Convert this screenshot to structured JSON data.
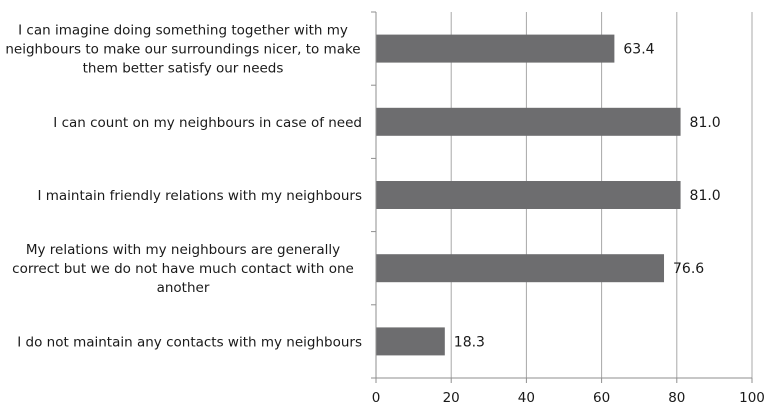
{
  "chart_data": {
    "type": "bar",
    "orientation": "horizontal",
    "categories": [
      [
        "I can imagine doing something together with my",
        "neighbours to make our surroundings nicer, to make",
        "them better satisfy our needs"
      ],
      [
        "I can count on my neighbours in case of need"
      ],
      [
        "I maintain friendly relations with my neighbours"
      ],
      [
        "My relations with my neighbours are generally",
        "correct but we do not have much contact with one",
        "another"
      ],
      [
        "I do not maintain any contacts with my neighbours"
      ]
    ],
    "values": [
      63.4,
      81.0,
      81.0,
      76.6,
      18.3
    ],
    "value_labels": [
      "63.4",
      "81.0",
      "81.0",
      "76.6",
      "18.3"
    ],
    "title": "",
    "xlabel": "",
    "ylabel": "",
    "xlim": [
      0,
      100
    ],
    "xticks": [
      0,
      20,
      40,
      60,
      80,
      100
    ],
    "grid": true,
    "legend": "none",
    "bar_color": "#6d6d6f",
    "grid_color": "#a8a8a8"
  }
}
